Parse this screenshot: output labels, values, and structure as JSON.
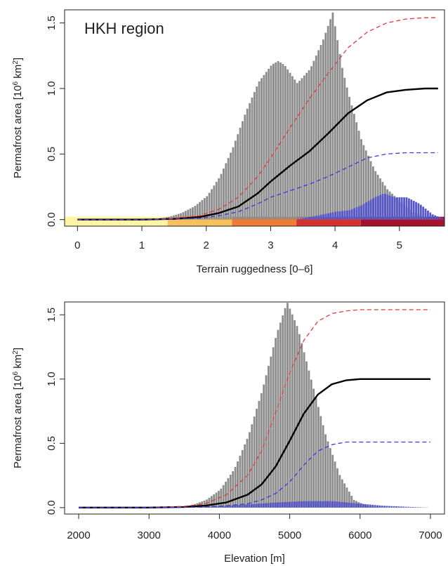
{
  "chart_data": [
    {
      "type": "bar",
      "panel_label": "HKH region",
      "xlabel": "Terrain ruggedness [0–6]",
      "ylabel": "Permafrost area [10^6 km^2]",
      "ylabel_parts": {
        "pre": "Permafrost area [10",
        "exp1": "6",
        "mid": " km",
        "exp2": "2",
        "post": "]"
      },
      "xlim": [
        -0.2,
        5.7
      ],
      "ylim": [
        -0.05,
        1.6
      ],
      "x_ticks": [
        0,
        1,
        2,
        3,
        4,
        5
      ],
      "y_ticks": [
        0.0,
        0.5,
        1.0,
        1.5
      ],
      "y_tick_labels": [
        "0.0",
        "0.5",
        "1.0",
        "1.5"
      ],
      "grid": false,
      "legend": "none",
      "colors": {
        "hist_gray": "#8c8c8c",
        "hist_blue": "#5a5acb",
        "black": "#000000",
        "red": "#e03b3b",
        "blue": "#3a3ad4"
      },
      "histogram_gray": {
        "x": [
          1.0,
          1.2,
          1.4,
          1.6,
          1.8,
          2.0,
          2.2,
          2.4,
          2.6,
          2.8,
          3.0,
          3.1,
          3.2,
          3.4,
          3.6,
          3.8,
          3.95,
          4.1,
          4.2,
          4.4,
          4.6,
          4.8,
          5.0,
          5.2,
          5.4,
          5.6
        ],
        "y": [
          0.0,
          0.005,
          0.02,
          0.05,
          0.1,
          0.18,
          0.33,
          0.55,
          0.82,
          1.05,
          1.18,
          1.21,
          1.18,
          1.04,
          1.15,
          1.37,
          1.58,
          1.15,
          0.95,
          0.6,
          0.38,
          0.23,
          0.14,
          0.06,
          0.02,
          0.0
        ]
      },
      "histogram_blue": {
        "x": [
          3.4,
          3.6,
          3.8,
          4.0,
          4.2,
          4.4,
          4.6,
          4.75,
          4.9,
          5.1,
          5.3,
          5.5,
          5.7
        ],
        "y": [
          0.0,
          0.02,
          0.04,
          0.06,
          0.07,
          0.11,
          0.17,
          0.2,
          0.17,
          0.17,
          0.12,
          0.04,
          0.0
        ]
      },
      "series": [
        {
          "color": "#000000",
          "style": "solid",
          "x": [
            0,
            1.0,
            1.5,
            1.9,
            2.2,
            2.5,
            2.8,
            3.0,
            3.3,
            3.6,
            3.9,
            4.2,
            4.5,
            4.8,
            5.1,
            5.4,
            5.6
          ],
          "y": [
            0,
            0,
            0.005,
            0.02,
            0.05,
            0.1,
            0.2,
            0.29,
            0.41,
            0.52,
            0.66,
            0.81,
            0.91,
            0.97,
            0.99,
            1.0,
            1.0
          ]
        },
        {
          "color": "#e03b3b",
          "style": "dashed",
          "x": [
            0,
            1.0,
            1.5,
            1.9,
            2.2,
            2.5,
            2.8,
            3.0,
            3.3,
            3.6,
            3.9,
            4.2,
            4.5,
            4.8,
            5.1,
            5.4,
            5.6
          ],
          "y": [
            0,
            0,
            0.01,
            0.03,
            0.08,
            0.17,
            0.33,
            0.47,
            0.7,
            0.92,
            1.12,
            1.31,
            1.43,
            1.5,
            1.53,
            1.54,
            1.54
          ]
        },
        {
          "color": "#3a3ad4",
          "style": "dashed",
          "x": [
            0,
            1.0,
            1.5,
            1.9,
            2.2,
            2.5,
            2.8,
            3.0,
            3.3,
            3.6,
            3.9,
            4.2,
            4.5,
            4.8,
            5.1,
            5.4,
            5.6
          ],
          "y": [
            0,
            0,
            0.003,
            0.01,
            0.03,
            0.06,
            0.12,
            0.17,
            0.22,
            0.27,
            0.33,
            0.4,
            0.47,
            0.5,
            0.51,
            0.51,
            0.51
          ]
        }
      ],
      "ruggedness_colorbar": [
        {
          "from": -0.2,
          "to": 1.4,
          "color": "#fbf5a4"
        },
        {
          "from": 1.4,
          "to": 2.4,
          "color": "#f6c15a"
        },
        {
          "from": 2.4,
          "to": 3.4,
          "color": "#f07b35"
        },
        {
          "from": 3.4,
          "to": 4.4,
          "color": "#d6312e"
        },
        {
          "from": 4.4,
          "to": 5.7,
          "color": "#a6132a"
        }
      ]
    },
    {
      "type": "bar",
      "xlabel": "Elevation [m]",
      "ylabel": "Permafrost area [10^6 km^2]",
      "ylabel_parts": {
        "pre": "Permafrost area [10",
        "exp1": "6",
        "mid": " km",
        "exp2": "2",
        "post": "]"
      },
      "xlim": [
        1800,
        7200
      ],
      "ylim": [
        -0.05,
        1.6
      ],
      "x_ticks": [
        2000,
        3000,
        4000,
        5000,
        6000,
        7000
      ],
      "y_ticks": [
        0.0,
        0.5,
        1.0,
        1.5
      ],
      "y_tick_labels": [
        "0.0",
        "0.5",
        "1.0",
        "1.5"
      ],
      "grid": false,
      "legend": "none",
      "histogram_gray": {
        "x": [
          3200,
          3400,
          3600,
          3800,
          4000,
          4200,
          4400,
          4600,
          4800,
          4950,
          5100,
          5300,
          5500,
          5700,
          5900,
          6100,
          6300
        ],
        "y": [
          0.0,
          0.005,
          0.02,
          0.06,
          0.14,
          0.3,
          0.56,
          0.92,
          1.35,
          1.6,
          1.4,
          0.98,
          0.56,
          0.25,
          0.06,
          0.01,
          0.0
        ]
      },
      "histogram_blue": {
        "x": [
          3600,
          4000,
          4400,
          4800,
          5200,
          5600,
          5900,
          6300,
          6700,
          7000
        ],
        "y": [
          0.0,
          0.01,
          0.025,
          0.04,
          0.05,
          0.05,
          0.035,
          0.015,
          0.005,
          0.0
        ]
      },
      "series": [
        {
          "color": "#000000",
          "style": "solid",
          "x": [
            2000,
            3000,
            3500,
            3800,
            4100,
            4400,
            4600,
            4800,
            5000,
            5200,
            5400,
            5600,
            5800,
            6000,
            6500,
            7000
          ],
          "y": [
            0,
            0,
            0.005,
            0.015,
            0.04,
            0.1,
            0.18,
            0.32,
            0.52,
            0.73,
            0.88,
            0.96,
            0.99,
            1.0,
            1.0,
            1.0
          ]
        },
        {
          "color": "#e03b3b",
          "style": "dashed",
          "x": [
            2000,
            3000,
            3500,
            3800,
            4100,
            4400,
            4600,
            4800,
            5000,
            5200,
            5400,
            5600,
            5800,
            6000,
            6500,
            7000
          ],
          "y": [
            0,
            0,
            0.01,
            0.03,
            0.1,
            0.25,
            0.44,
            0.74,
            1.05,
            1.3,
            1.45,
            1.51,
            1.53,
            1.54,
            1.54,
            1.54
          ]
        },
        {
          "color": "#3a3ad4",
          "style": "dashed",
          "x": [
            2000,
            3000,
            3500,
            3800,
            4100,
            4400,
            4600,
            4800,
            5000,
            5200,
            5400,
            5600,
            5800,
            6000,
            6500,
            7000
          ],
          "y": [
            0,
            0,
            0.002,
            0.005,
            0.015,
            0.03,
            0.06,
            0.11,
            0.2,
            0.33,
            0.44,
            0.49,
            0.51,
            0.51,
            0.51,
            0.51
          ]
        }
      ]
    }
  ]
}
